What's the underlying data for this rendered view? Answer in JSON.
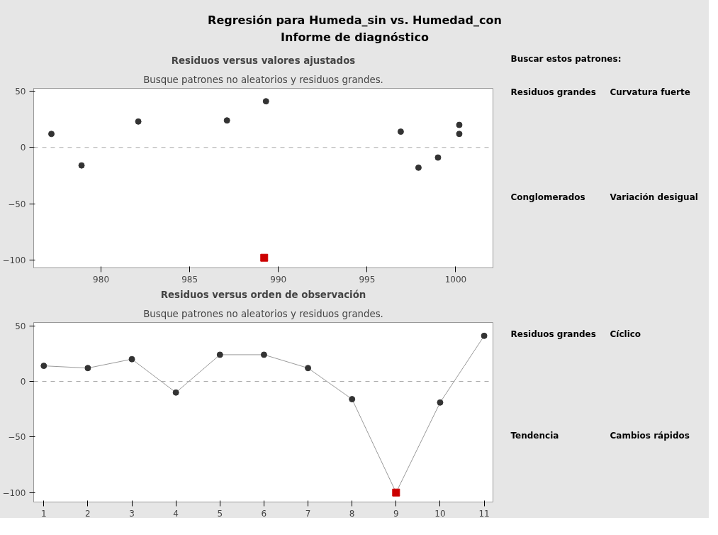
{
  "chart_data": [
    {
      "type": "other",
      "title": "Regresión para Humeda_sin vs. Humedad_con",
      "subtitle": "Informe de diagnóstico"
    },
    {
      "type": "scatter",
      "title": "Residuos versus valores ajustados",
      "subtitle": "Busque patrones no aleatorios y residuos grandes.",
      "xlim": [
        976.2,
        1002.1
      ],
      "xticks": [
        980,
        985,
        990,
        995,
        1000
      ],
      "ylim": [
        -107,
        52.5
      ],
      "yticks": [
        -100,
        -50,
        0,
        50
      ],
      "grid": false,
      "ref_lines": [
        {
          "axis": "y",
          "value": 0,
          "color": "#aaaaaa",
          "line_style": "dashed"
        }
      ],
      "series": [
        {
          "color": "#333333",
          "marker": "circle",
          "x": [
            977.2,
            978.9,
            982.1,
            987.1,
            989.3,
            996.9,
            997.9,
            999.0,
            1000.2,
            1000.2
          ],
          "values": [
            12,
            -16,
            23,
            24,
            41,
            14,
            -18,
            -9,
            20,
            12
          ]
        },
        {
          "color": "#cc0000",
          "marker": "square",
          "x": [
            989.2
          ],
          "values": [
            -98
          ]
        }
      ]
    },
    {
      "type": "line",
      "title": "Residuos versus orden de observación",
      "subtitle": "Busque patrones no aleatorios y residuos grandes.",
      "x": [
        1,
        2,
        3,
        4,
        5,
        6,
        7,
        8,
        9,
        10,
        11
      ],
      "xlim": [
        0.77,
        11.2
      ],
      "xticks": [
        1,
        2,
        3,
        4,
        5,
        6,
        7,
        8,
        9,
        10,
        11
      ],
      "ylim": [
        -108.5,
        53
      ],
      "yticks": [
        -100,
        -50,
        0,
        50
      ],
      "grid": false,
      "ref_lines": [
        {
          "axis": "y",
          "value": 0,
          "color": "#aaaaaa",
          "line_style": "dashed"
        }
      ],
      "series": [
        {
          "type": "line",
          "color": "#999999",
          "marker": "none",
          "values": [
            14,
            12,
            20,
            -10,
            24,
            24,
            12,
            -16,
            -100,
            -19,
            41
          ]
        },
        {
          "type": "scatter",
          "color": "#333333",
          "marker": "circle",
          "values": [
            14,
            12,
            20,
            -10,
            24,
            24,
            12,
            -16,
            null,
            -19,
            41
          ]
        },
        {
          "type": "scatter",
          "color": "#cc0000",
          "marker": "square",
          "values": [
            null,
            null,
            null,
            null,
            null,
            null,
            null,
            null,
            -100,
            null,
            null
          ]
        }
      ]
    },
    {
      "type": "other",
      "title": "Buscar estos patrones:",
      "annotations": [
        "Residuos grandes",
        "Curvatura fuerte",
        "Conglomerados",
        "Variación desigual",
        "Residuos grandes",
        "Cíclico",
        "Tendencia",
        "Cambios rápidos"
      ]
    }
  ]
}
